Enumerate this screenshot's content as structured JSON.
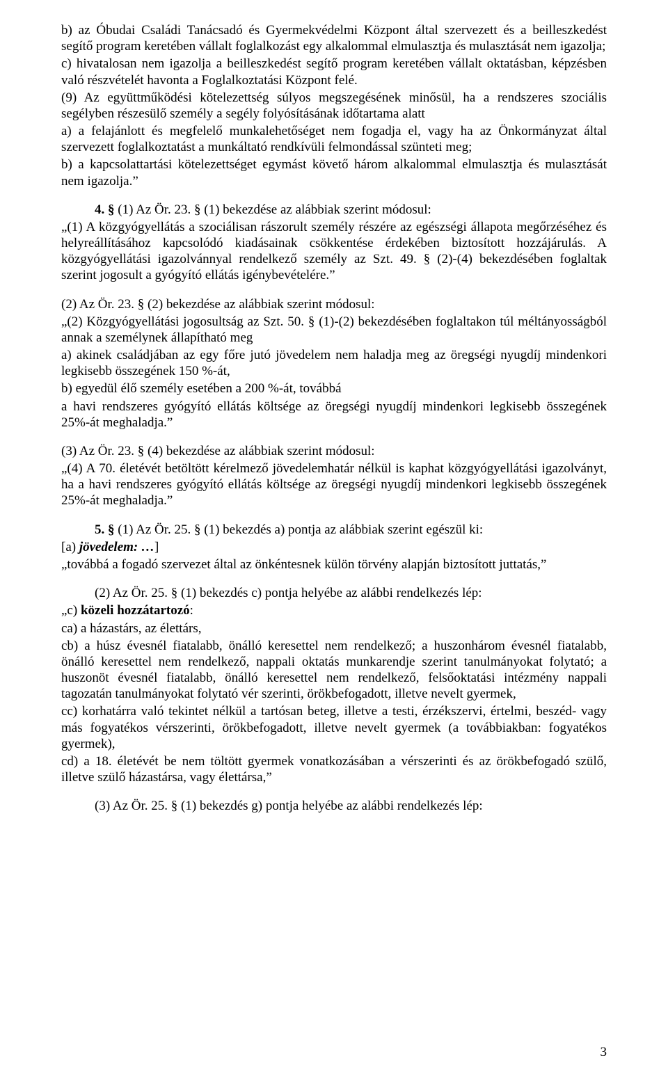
{
  "p1": "b) az Óbudai Családi Tanácsadó és Gyermekvédelmi Központ által szervezett és a beilleszkedést segítő program keretében vállalt foglalkozást egy alkalommal elmulasztja és mulasztását nem igazolja;",
  "p2": "c) hivatalosan nem igazolja a beilleszkedést segítő program keretében vállalt oktatásban, képzésben való részvételét havonta a Foglalkoztatási Központ felé.",
  "p3": "(9) Az együttműködési kötelezettség súlyos megszegésének minősül, ha a rendszeres szociális segélyben részesülő személy a segély folyósításának időtartama alatt",
  "p4": "a) a felajánlott és megfelelő munkalehetőséget nem fogadja el, vagy ha az Önkormányzat által szervezett foglalkoztatást a munkáltató rendkívüli felmondással szünteti meg;",
  "p5": "b) a kapcsolattartási kötelezettséget egymást követő három alkalommal elmulasztja és mulasztását nem igazolja.”",
  "p6a": "4. §",
  "p6b": " (1) Az Ör. 23. § (1) bekezdése az alábbiak szerint módosul:",
  "p7": "„(1) A közgyógyellátás a szociálisan rászorult személy részére az egészségi állapota megőrzéséhez és helyreállításához kapcsolódó kiadásainak csökkentése érdekében biztosított hozzájárulás. A közgyógyellátási igazolvánnyal rendelkező személy az Szt. 49. § (2)-(4) bekezdésében foglaltak szerint jogosult a gyógyító ellátás igénybevételére.”",
  "p8": "(2) Az Ör. 23. § (2) bekezdése az alábbiak szerint módosul:",
  "p9": "„(2) Közgyógyellátási jogosultság az Szt. 50. § (1)-(2) bekezdésében foglaltakon túl méltányosságból annak a személynek állapítható meg",
  "p10": "a) akinek családjában az egy főre jutó jövedelem nem haladja meg az öregségi nyugdíj mindenkori legkisebb összegének 150 %-át,",
  "p11": "b) egyedül élő személy esetében a 200 %-át, továbbá",
  "p12": "a havi rendszeres gyógyító ellátás költsége az öregségi nyugdíj mindenkori legkisebb összegének 25%-át meghaladja.”",
  "p13": "(3) Az Ör. 23. § (4) bekezdése az alábbiak szerint módosul:",
  "p14": "„(4) A 70. életévét betöltött kérelmező jövedelemhatár nélkül is kaphat közgyógyellátási igazolványt, ha a havi rendszeres gyógyító ellátás költsége az öregségi nyugdíj mindenkori legkisebb összegének 25%-át meghaladja.”",
  "p15a": "5. §",
  "p15b": " (1) Az Ör. 25. § (1) bekezdés a) pontja az alábbiak szerint egészül ki:",
  "p16a": "[a) ",
  "p16b": "jövedelem: …",
  "p16c": "]",
  "p17": "„továbbá a fogadó szervezet által az önkéntesnek külön törvény alapján biztosított juttatás,”",
  "p18": "(2) Az Ör. 25. § (1) bekezdés c) pontja helyébe az alábbi rendelkezés lép:",
  "p19a": "„c) ",
  "p19b": "közeli hozzátartozó",
  "p19c": ":",
  "p20": "ca) a házastárs, az élettárs,",
  "p21": "cb) a húsz évesnél fiatalabb, önálló keresettel nem rendelkező; a huszonhárom évesnél fiatalabb, önálló keresettel nem rendelkező, nappali oktatás munkarendje szerint tanulmányokat folytató; a huszonöt évesnél fiatalabb, önálló keresettel nem rendelkező, felsőoktatási intézmény nappali tagozatán tanulmányokat folytató vér szerinti, örökbefogadott, illetve nevelt gyermek,",
  "p22": "cc) korhatárra való tekintet nélkül a tartósan beteg, illetve a testi, érzékszervi, értelmi, beszéd- vagy más fogyatékos vérszerinti, örökbefogadott, illetve nevelt gyermek (a továbbiakban: fogyatékos gyermek),",
  "p23": "cd) a 18. életévét be nem töltött gyermek vonatkozásában a vérszerinti és az örökbefogadó szülő, illetve szülő házastársa, vagy élettársa,”",
  "p24": "(3) Az Ör. 25. § (1) bekezdés g) pontja helyébe az alábbi rendelkezés lép:",
  "pagenum": "3"
}
